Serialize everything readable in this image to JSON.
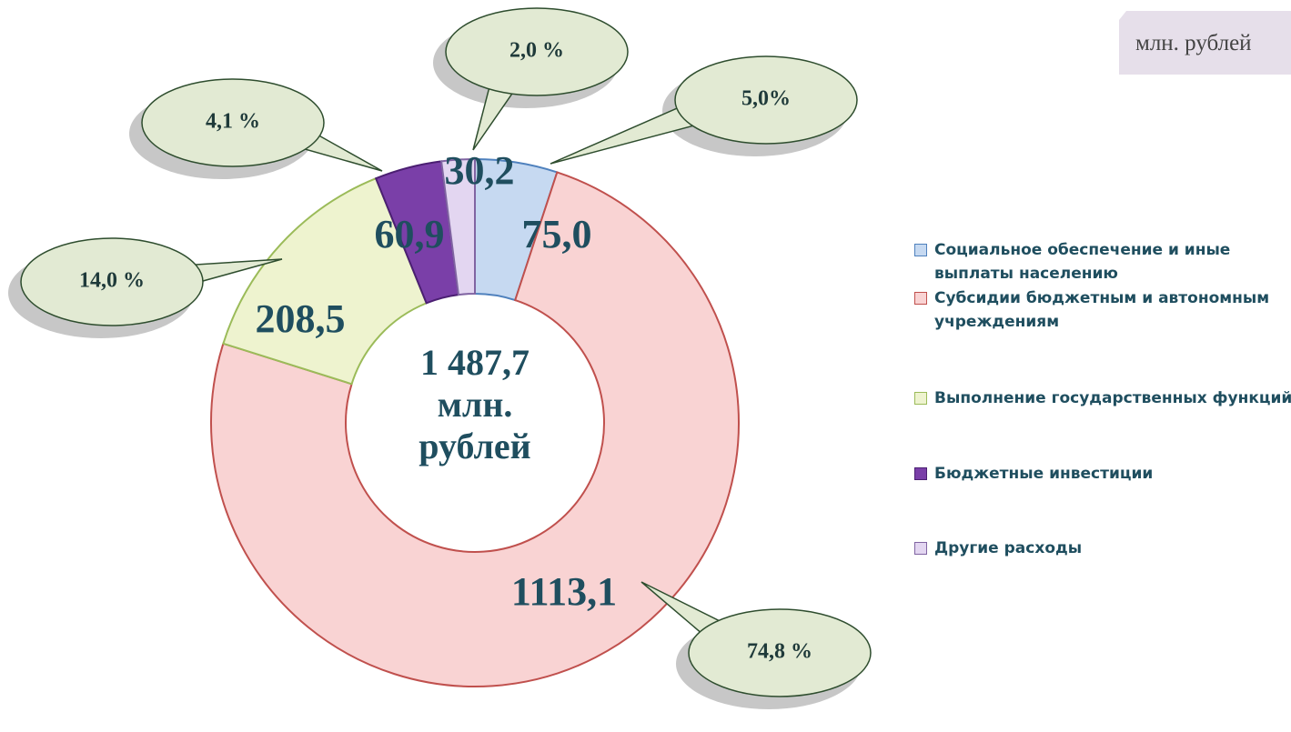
{
  "chart_data": {
    "type": "donut",
    "categories": [
      "Социальное обеспечение и иные выплаты населению",
      "Субсидии бюджетным и автономным учреждениям",
      "Выполнение государственных функций",
      "Бюджетные инвестиции",
      "Другие расходы"
    ],
    "values": [
      75.0,
      1113.1,
      208.5,
      60.9,
      30.2
    ],
    "value_labels": [
      "75,0",
      "1113,1",
      "208,5",
      "60,9",
      "30,2"
    ],
    "percents": [
      5.0,
      74.8,
      14.0,
      4.1,
      2.0
    ],
    "percent_labels": [
      "5,0%",
      "74,8 %",
      "14,0 %",
      "4,1 %",
      "2,0 %"
    ],
    "colors": [
      "#c6d9f1",
      "#f9d3d3",
      "#eef3cf",
      "#7a3fa8",
      "#e3d6f1"
    ],
    "center_label": [
      "1 487,7",
      "млн.",
      "рублей"
    ],
    "unit": "млн. рублей",
    "legend": "right"
  }
}
